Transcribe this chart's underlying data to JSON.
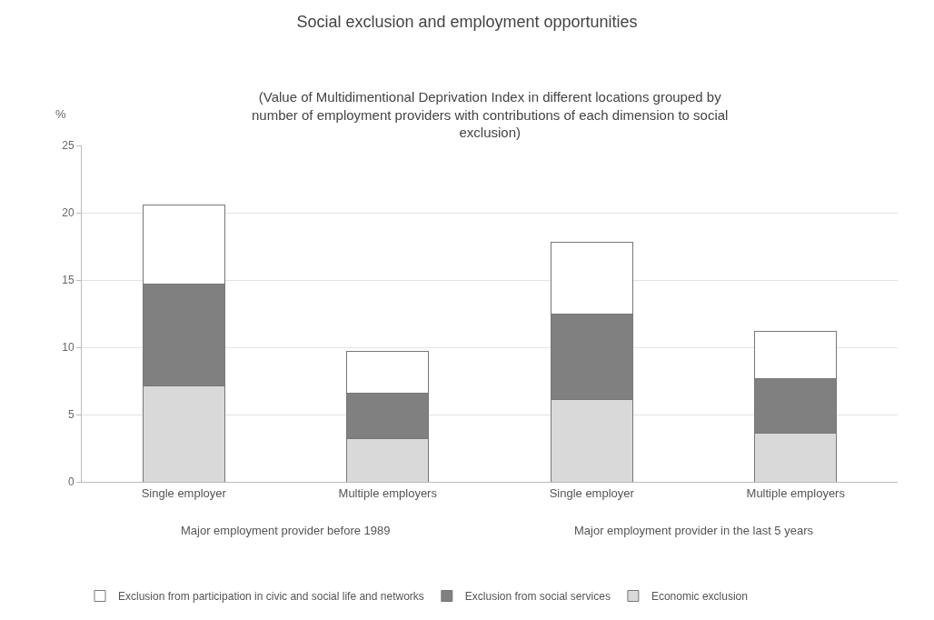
{
  "chart_data": {
    "type": "bar",
    "stacked": true,
    "title": "Social exclusion and employment opportunities",
    "subtitle": "(Value of Multidimentional Deprivation Index in different locations grouped by number of employment providers with contributions of each dimension to social exclusion)",
    "ylabel": "%",
    "categories": [
      "Single employer",
      "Multiple employers",
      "Single employer",
      "Multiple employers"
    ],
    "annotations": [
      "Major employment provider before 1989",
      "Major employment provider in the last 5 years"
    ],
    "series": [
      {
        "name": "Economic exclusion",
        "color": "#d9d9d9",
        "values": [
          7.1,
          3.2,
          6.1,
          3.6
        ]
      },
      {
        "name": "Exclusion from social services",
        "color": "#808080",
        "values": [
          7.6,
          3.4,
          6.4,
          4.1
        ]
      },
      {
        "name": "Exclusion from participation in civic and social life and networks",
        "color": "#ffffff",
        "values": [
          5.9,
          3.1,
          5.3,
          3.5
        ]
      }
    ],
    "ylim": [
      0,
      25
    ],
    "yticks": [
      0,
      5,
      10,
      15,
      20,
      25
    ],
    "grid": "y",
    "legend": "bottom"
  }
}
